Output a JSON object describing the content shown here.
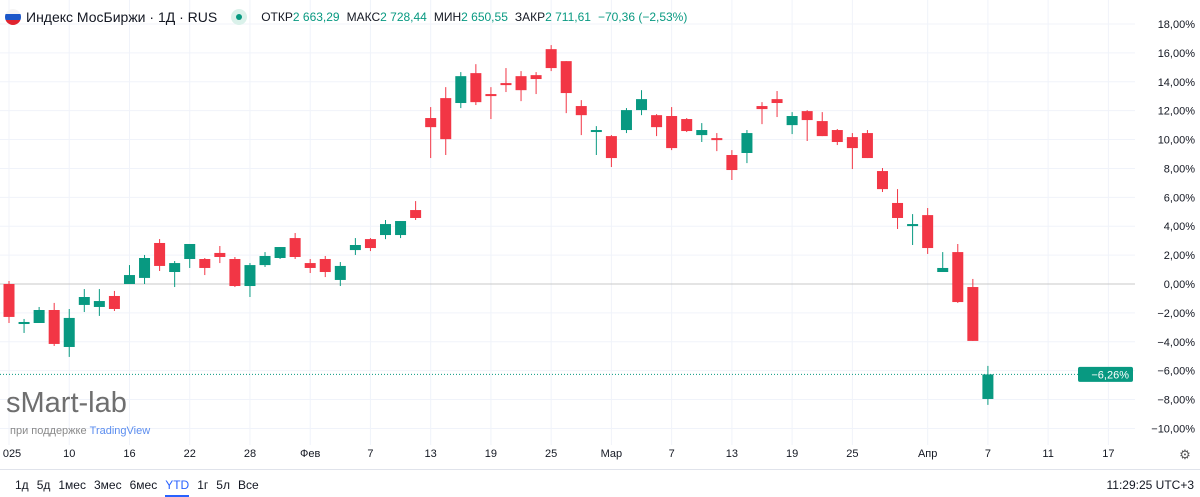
{
  "header": {
    "title": "Индекс МосБиржи · 1Д · RUS",
    "flag_icon": "russia-flag-icon",
    "status_icon": "market-open-dot-icon",
    "open_label": "ОТКР",
    "open": "2 663,29",
    "high_label": "МАКС",
    "high": "2 728,44",
    "low_label": "МИН",
    "low": "2 650,55",
    "close_label": "ЗАКР",
    "close": "2 711,61",
    "change": "−70,36 (−2,53%)"
  },
  "colors": {
    "up": "#089981",
    "down": "#f23645",
    "grid": "#f0f3fa",
    "zero_line": "#c8c8c8",
    "accent": "#2962ff"
  },
  "chart_data": {
    "type": "candlestick",
    "y_unit": "%",
    "ylim": [
      -11,
      19
    ],
    "y_ticks": [
      "18,00%",
      "16,00%",
      "14,00%",
      "12,00%",
      "10,00%",
      "8,00%",
      "6,00%",
      "4,00%",
      "2,00%",
      "0,00%",
      "−2,00%",
      "−4,00%",
      "−6,00%",
      "−8,00%",
      "−10,00%"
    ],
    "y_tick_values": [
      18,
      16,
      14,
      12,
      10,
      8,
      6,
      4,
      2,
      0,
      -2,
      -4,
      -6,
      -8,
      -10
    ],
    "x_ticks": [
      "025",
      "10",
      "16",
      "22",
      "28",
      "Фев",
      "7",
      "13",
      "19",
      "25",
      "Мар",
      "7",
      "13",
      "19",
      "25",
      "Апр",
      "7",
      "11",
      "17"
    ],
    "last_value_label": "−6,26%",
    "last_value": -6.26,
    "candles_ohlc": [
      [
        0,
        0.21,
        -2.7,
        -2.28
      ],
      [
        -2.77,
        -2.42,
        -3.39,
        -2.63
      ],
      [
        -2.7,
        -1.59,
        -2.7,
        -1.8
      ],
      [
        -1.8,
        -1.31,
        -4.29,
        -4.15
      ],
      [
        -4.36,
        -1.73,
        -5.05,
        -2.35
      ],
      [
        -1.45,
        -0.35,
        -1.94,
        -0.9
      ],
      [
        -1.59,
        -0.35,
        -2.21,
        -1.18
      ],
      [
        -0.83,
        -0.48,
        -1.87,
        -1.73
      ],
      [
        0,
        1.31,
        0,
        0.62
      ],
      [
        0.42,
        2.01,
        0,
        1.8
      ],
      [
        2.84,
        3.11,
        0.9,
        1.25
      ],
      [
        0.83,
        1.59,
        -0.21,
        1.45
      ],
      [
        1.73,
        2.77,
        1.11,
        2.77
      ],
      [
        1.73,
        1.8,
        0.62,
        1.11
      ],
      [
        2.15,
        2.63,
        1.45,
        1.87
      ],
      [
        1.73,
        1.87,
        -0.21,
        -0.14
      ],
      [
        -0.14,
        1.45,
        -0.9,
        1.31
      ],
      [
        1.31,
        2.21,
        1.18,
        1.94
      ],
      [
        1.8,
        2.56,
        1.73,
        2.56
      ],
      [
        3.18,
        3.53,
        1.73,
        1.87
      ],
      [
        1.45,
        1.73,
        0.76,
        1.11
      ],
      [
        1.73,
        1.94,
        0.48,
        0.83
      ],
      [
        0.28,
        1.52,
        -0.14,
        1.25
      ],
      [
        2.35,
        3.18,
        2.01,
        2.7
      ],
      [
        3.11,
        3.18,
        2.28,
        2.49
      ],
      [
        3.39,
        4.43,
        3.11,
        4.15
      ],
      [
        3.39,
        4.36,
        3.18,
        4.36
      ],
      [
        5.12,
        5.74,
        4.43,
        4.57
      ],
      [
        11.49,
        12.25,
        8.72,
        10.86
      ],
      [
        12.87,
        13.63,
        8.93,
        10.03
      ],
      [
        12.53,
        14.67,
        12.18,
        14.39
      ],
      [
        14.6,
        15.22,
        12.39,
        12.59
      ],
      [
        13.15,
        13.63,
        11.42,
        13.01
      ],
      [
        13.91,
        14.95,
        13.29,
        13.77
      ],
      [
        14.39,
        14.74,
        12.66,
        13.42
      ],
      [
        14.46,
        14.67,
        13.15,
        14.19
      ],
      [
        16.26,
        16.54,
        14.74,
        14.95
      ],
      [
        15.43,
        15.43,
        11.83,
        13.22
      ],
      [
        12.32,
        12.73,
        10.31,
        11.69
      ],
      [
        10.59,
        10.93,
        8.93,
        10.66
      ],
      [
        10.24,
        10.31,
        8.1,
        8.72
      ],
      [
        10.66,
        12.18,
        10.45,
        12.04
      ],
      [
        12.04,
        13.42,
        11.69,
        12.8
      ],
      [
        11.69,
        11.76,
        10.24,
        10.86
      ],
      [
        11.63,
        12.25,
        9.27,
        9.41
      ],
      [
        11.42,
        11.49,
        10.52,
        10.59
      ],
      [
        10.31,
        11.14,
        9.83,
        10.66
      ],
      [
        10.1,
        10.45,
        9.2,
        10.03
      ],
      [
        8.93,
        9.27,
        7.2,
        7.89
      ],
      [
        9.07,
        10.66,
        8.37,
        10.45
      ],
      [
        12.32,
        12.59,
        11.07,
        12.11
      ],
      [
        12.8,
        13.36,
        11.56,
        12.53
      ],
      [
        11.0,
        11.9,
        10.38,
        11.63
      ],
      [
        11.97,
        12.04,
        9.9,
        11.35
      ],
      [
        11.28,
        11.9,
        10.24,
        10.24
      ],
      [
        10.66,
        10.73,
        9.62,
        9.83
      ],
      [
        10.17,
        10.45,
        7.96,
        9.41
      ],
      [
        10.45,
        10.66,
        8.72,
        8.72
      ],
      [
        7.82,
        8.03,
        6.37,
        6.57
      ],
      [
        5.61,
        6.57,
        3.81,
        4.57
      ],
      [
        4.01,
        4.84,
        2.7,
        4.15
      ],
      [
        4.77,
        5.26,
        2.08,
        2.49
      ],
      [
        0.83,
        2.21,
        0.83,
        1.11
      ],
      [
        2.21,
        2.77,
        -1.31,
        -1.25
      ],
      [
        -0.21,
        0.35,
        -3.94,
        -3.94
      ],
      [
        -7.96,
        -5.67,
        -8.37,
        -6.26
      ]
    ]
  },
  "watermark": {
    "logo": "sMart-lab",
    "support_prefix": "при поддержке",
    "support_brand": "TradingView"
  },
  "axis": {
    "settings_icon": "gear-icon"
  },
  "ranges": [
    "1д",
    "5д",
    "1мес",
    "3мес",
    "6мес",
    "YTD",
    "1г",
    "5л",
    "Все"
  ],
  "active_range": "YTD",
  "clock": "11:29:25 UTC+3"
}
